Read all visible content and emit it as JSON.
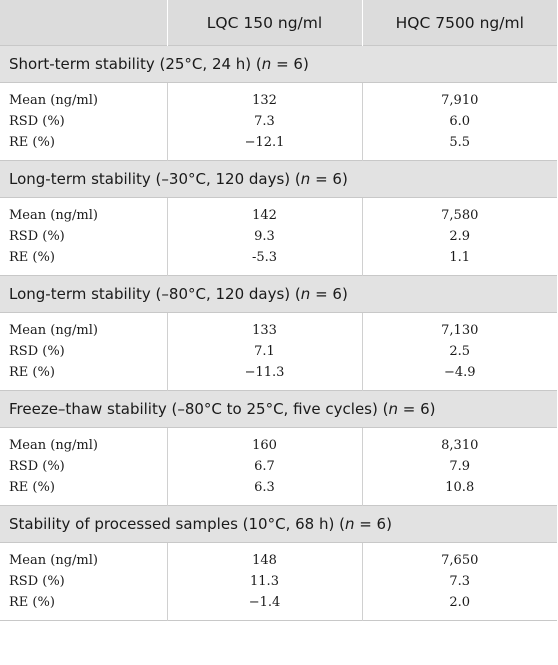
{
  "header": {
    "col1": "",
    "col2": "LQC 150 ng/ml",
    "col3": "HQC 7500 ng/ml"
  },
  "sections": [
    {
      "title_pre": "Short-term stability (25°C, 24 h) (",
      "title_n": "n",
      "title_post": " = 6)",
      "rows": [
        {
          "label": "Mean (ng/ml)",
          "lqc": "132",
          "hqc": "7,910"
        },
        {
          "label": "RSD (%)",
          "lqc": "7.3",
          "hqc": "6.0"
        },
        {
          "label": "RE (%)",
          "lqc": "−12.1",
          "hqc": "5.5"
        }
      ]
    },
    {
      "title_pre": "Long-term stability (–30°C, 120 days) (",
      "title_n": "n",
      "title_post": " = 6)",
      "rows": [
        {
          "label": "Mean (ng/ml)",
          "lqc": "142",
          "hqc": "7,580"
        },
        {
          "label": "RSD (%)",
          "lqc": "9.3",
          "hqc": "2.9"
        },
        {
          "label": "RE (%)",
          "lqc": "-5.3",
          "hqc": "1.1"
        }
      ]
    },
    {
      "title_pre": "Long-term stability (–80°C, 120 days) (",
      "title_n": "n",
      "title_post": " = 6)",
      "rows": [
        {
          "label": "Mean (ng/ml)",
          "lqc": "133",
          "hqc": "7,130"
        },
        {
          "label": "RSD (%)",
          "lqc": "7.1",
          "hqc": "2.5"
        },
        {
          "label": "RE (%)",
          "lqc": "−11.3",
          "hqc": "−4.9"
        }
      ]
    },
    {
      "title_pre": "Freeze–thaw stability (–80°C to 25°C, five cycles) (",
      "title_n": "n",
      "title_post": " = 6)",
      "rows": [
        {
          "label": "Mean (ng/ml)",
          "lqc": "160",
          "hqc": "8,310"
        },
        {
          "label": "RSD (%)",
          "lqc": "6.7",
          "hqc": "7.9"
        },
        {
          "label": "RE (%)",
          "lqc": "6.3",
          "hqc": "10.8"
        }
      ]
    },
    {
      "title_pre": "Stability of processed samples (10°C, 68 h) (",
      "title_n": "n",
      "title_post": " = 6)",
      "rows": [
        {
          "label": "Mean (ng/ml)",
          "lqc": "148",
          "hqc": "7,650"
        },
        {
          "label": "RSD (%)",
          "lqc": "11.3",
          "hqc": "7.3"
        },
        {
          "label": "RE (%)",
          "lqc": "−1.4",
          "hqc": "2.0"
        }
      ]
    }
  ]
}
